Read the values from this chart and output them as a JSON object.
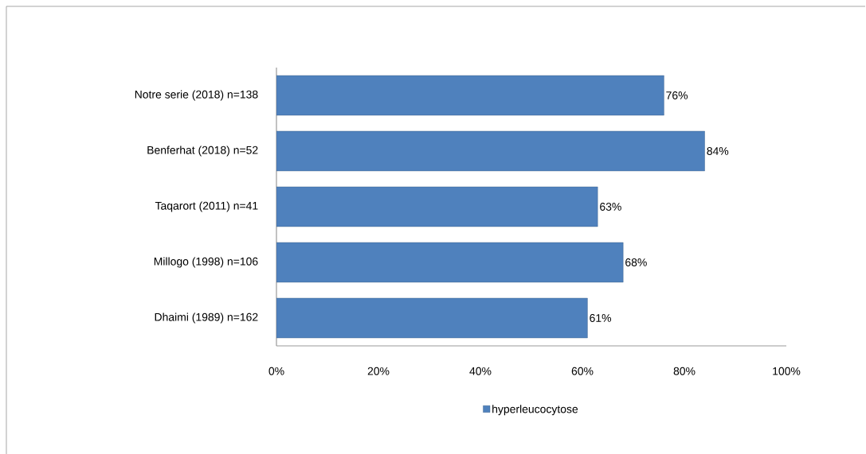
{
  "chart_data": {
    "type": "bar",
    "orientation": "horizontal",
    "categories": [
      "Notre serie (2018) n=138",
      "Benferhat (2018) n=52",
      "Taqarort (2011) n=41",
      "Millogo (1998) n=106",
      "Dhaimi (1989) n=162"
    ],
    "series": [
      {
        "name": "hyperleucocytose",
        "color": "#4f81bd",
        "values": [
          76,
          84,
          63,
          68,
          61
        ],
        "value_labels": [
          "76%",
          "84%",
          "63%",
          "68%",
          "61%"
        ]
      }
    ],
    "xlim": [
      0,
      100
    ],
    "xticks": [
      {
        "value": 0,
        "label": "0%"
      },
      {
        "value": 20,
        "label": "20%"
      },
      {
        "value": 40,
        "label": "40%"
      },
      {
        "value": 60,
        "label": "60%"
      },
      {
        "value": 80,
        "label": "80%"
      },
      {
        "value": 100,
        "label": "100%"
      }
    ],
    "grid": false,
    "legend": "bottom"
  }
}
